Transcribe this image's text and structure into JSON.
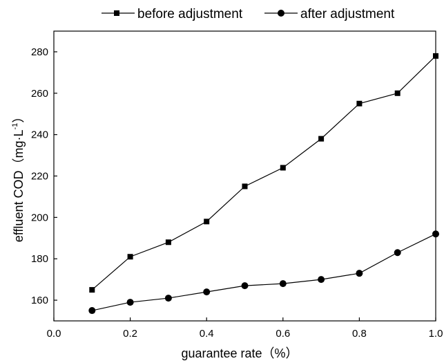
{
  "chart_data": {
    "type": "line",
    "title": "",
    "xlabel": "guarantee rate（%）",
    "ylabel": "effluent COD（mg·L",
    "ylabel_sup": "-1",
    "ylabel_close": "）",
    "x": [
      0.1,
      0.2,
      0.3,
      0.4,
      0.5,
      0.6,
      0.7,
      0.8,
      0.9,
      1.0
    ],
    "xlim": [
      0.0,
      1.0
    ],
    "ylim": [
      150,
      290
    ],
    "xticks": [
      0.0,
      0.2,
      0.4,
      0.6,
      0.8,
      1.0
    ],
    "xtick_labels": [
      "0.0",
      "0.2",
      "0.4",
      "0.6",
      "0.8",
      "1.0"
    ],
    "yticks": [
      160,
      180,
      200,
      220,
      240,
      260,
      280
    ],
    "ytick_labels": [
      "160",
      "180",
      "200",
      "220",
      "240",
      "260",
      "280"
    ],
    "grid": false,
    "legend_position": "top",
    "series": [
      {
        "name": "before adjustment",
        "marker": "square",
        "color": "#000000",
        "values": [
          165,
          181,
          188,
          198,
          215,
          224,
          238,
          255,
          260,
          278
        ]
      },
      {
        "name": "after adjustment",
        "marker": "circle",
        "color": "#000000",
        "values": [
          155,
          159,
          161,
          164,
          167,
          168,
          170,
          173,
          183,
          192
        ]
      }
    ]
  }
}
